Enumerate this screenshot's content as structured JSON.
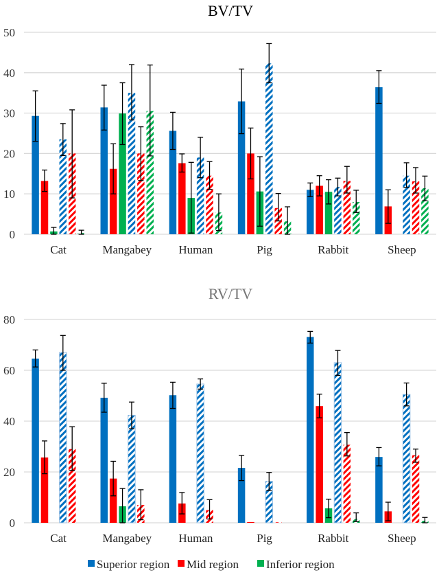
{
  "legend": [
    {
      "name": "Superior region",
      "color": "#0070C0"
    },
    {
      "name": "Mid region",
      "color": "#FF0000"
    },
    {
      "name": "Inferior region",
      "color": "#00B050"
    }
  ],
  "chart_data": [
    {
      "type": "bar",
      "title": "BV/TV",
      "categories": [
        "Cat",
        "Mangabey",
        "Human",
        "Pig",
        "Rabbit",
        "Sheep"
      ],
      "ylim": [
        0,
        50
      ],
      "yticks": [
        0,
        10,
        20,
        30,
        40,
        50
      ],
      "grid": true,
      "series": [
        {
          "name": "Superior region",
          "style": "solid",
          "color": "#0070C0",
          "values": [
            29.3,
            31.4,
            25.6,
            32.9,
            11.0,
            36.4
          ],
          "err_low": [
            23.0,
            25.8,
            21.0,
            24.9,
            9.3,
            32.4
          ],
          "err_high": [
            35.5,
            36.9,
            30.2,
            40.9,
            12.7,
            40.5
          ]
        },
        {
          "name": "Mid region",
          "style": "solid",
          "color": "#FF0000",
          "values": [
            13.2,
            16.2,
            17.6,
            20.0,
            12.0,
            6.9
          ],
          "err_low": [
            10.6,
            10.0,
            15.4,
            13.7,
            9.5,
            2.7
          ],
          "err_high": [
            15.9,
            22.4,
            19.9,
            26.3,
            14.5,
            11.0
          ]
        },
        {
          "name": "Inferior region",
          "style": "solid",
          "color": "#00B050",
          "values": [
            0.7,
            29.9,
            9.0,
            10.6,
            10.5,
            0.0
          ],
          "err_low": [
            0.0,
            22.2,
            0.3,
            2.0,
            7.5,
            null
          ],
          "err_high": [
            1.7,
            37.5,
            17.8,
            19.2,
            13.5,
            null
          ]
        },
        {
          "name": "Superior region",
          "style": "hatched",
          "color": "#0070C0",
          "values": [
            23.5,
            35.0,
            19.0,
            42.3,
            11.7,
            14.5
          ],
          "err_low": [
            19.5,
            28.3,
            14.0,
            37.5,
            9.5,
            11.6
          ],
          "err_high": [
            27.4,
            42.0,
            24.0,
            47.2,
            13.9,
            17.7
          ]
        },
        {
          "name": "Mid region",
          "style": "hatched",
          "color": "#FF0000",
          "values": [
            20.0,
            20.0,
            14.5,
            6.5,
            13.2,
            13.1
          ],
          "err_low": [
            9.0,
            13.3,
            11.1,
            3.3,
            10.2,
            10.2
          ],
          "err_high": [
            30.8,
            26.6,
            18.0,
            10.1,
            16.8,
            16.5
          ]
        },
        {
          "name": "Inferior region",
          "style": "hatched",
          "color": "#00B050",
          "values": [
            0.3,
            30.5,
            5.4,
            3.2,
            8.0,
            11.4
          ],
          "err_low": [
            0.0,
            19.4,
            0.9,
            0.0,
            5.4,
            8.3
          ],
          "err_high": [
            1.0,
            41.9,
            10.0,
            6.8,
            10.9,
            14.4
          ]
        }
      ]
    },
    {
      "type": "bar",
      "title": "RV/TV",
      "categories": [
        "Cat",
        "Mangabey",
        "Human",
        "Pig",
        "Rabbit",
        "Sheep"
      ],
      "ylim": [
        0,
        80
      ],
      "yticks": [
        0,
        20,
        40,
        60,
        80
      ],
      "grid": true,
      "series": [
        {
          "name": "Superior region",
          "style": "solid",
          "color": "#0070C0",
          "values": [
            64.6,
            49.2,
            50.2,
            21.6,
            73.1,
            25.9
          ],
          "err_low": [
            61.3,
            43.5,
            45.0,
            16.6,
            70.7,
            22.4
          ],
          "err_high": [
            68.0,
            54.9,
            55.3,
            26.5,
            75.3,
            29.6
          ]
        },
        {
          "name": "Mid region",
          "style": "solid",
          "color": "#FF0000",
          "values": [
            25.7,
            17.4,
            7.6,
            0.3,
            45.9,
            4.5
          ],
          "err_low": [
            19.3,
            10.6,
            3.5,
            null,
            41.3,
            0.8
          ],
          "err_high": [
            32.2,
            24.2,
            11.9,
            null,
            50.6,
            8.1
          ]
        },
        {
          "name": "Inferior region",
          "style": "solid",
          "color": "#00B050",
          "values": [
            0.0,
            6.5,
            0.0,
            0.0,
            5.7,
            0.0
          ],
          "err_low": [
            null,
            0.0,
            null,
            null,
            2.0,
            null
          ],
          "err_high": [
            null,
            13.5,
            null,
            null,
            9.3,
            null
          ]
        },
        {
          "name": "Superior region",
          "style": "hatched",
          "color": "#0070C0",
          "values": [
            67.0,
            42.3,
            54.6,
            16.3,
            63.0,
            50.5
          ],
          "err_low": [
            60.0,
            37.0,
            52.6,
            12.7,
            58.0,
            46.0
          ],
          "err_high": [
            73.7,
            47.5,
            56.6,
            19.8,
            67.8,
            55.0
          ]
        },
        {
          "name": "Mid region",
          "style": "hatched",
          "color": "#FF0000",
          "values": [
            29.0,
            7.0,
            5.0,
            0.2,
            30.7,
            26.6
          ],
          "err_low": [
            20.6,
            1.2,
            1.5,
            null,
            26.3,
            23.8
          ],
          "err_high": [
            37.8,
            13.0,
            9.1,
            null,
            35.5,
            29.0
          ]
        },
        {
          "name": "Inferior region",
          "style": "hatched",
          "color": "#00B050",
          "values": [
            0.0,
            0.0,
            0.0,
            0.0,
            1.5,
            0.8
          ],
          "err_low": [
            null,
            null,
            null,
            null,
            0.5,
            0.0
          ],
          "err_high": [
            null,
            null,
            null,
            null,
            3.9,
            2.1
          ]
        }
      ]
    }
  ]
}
